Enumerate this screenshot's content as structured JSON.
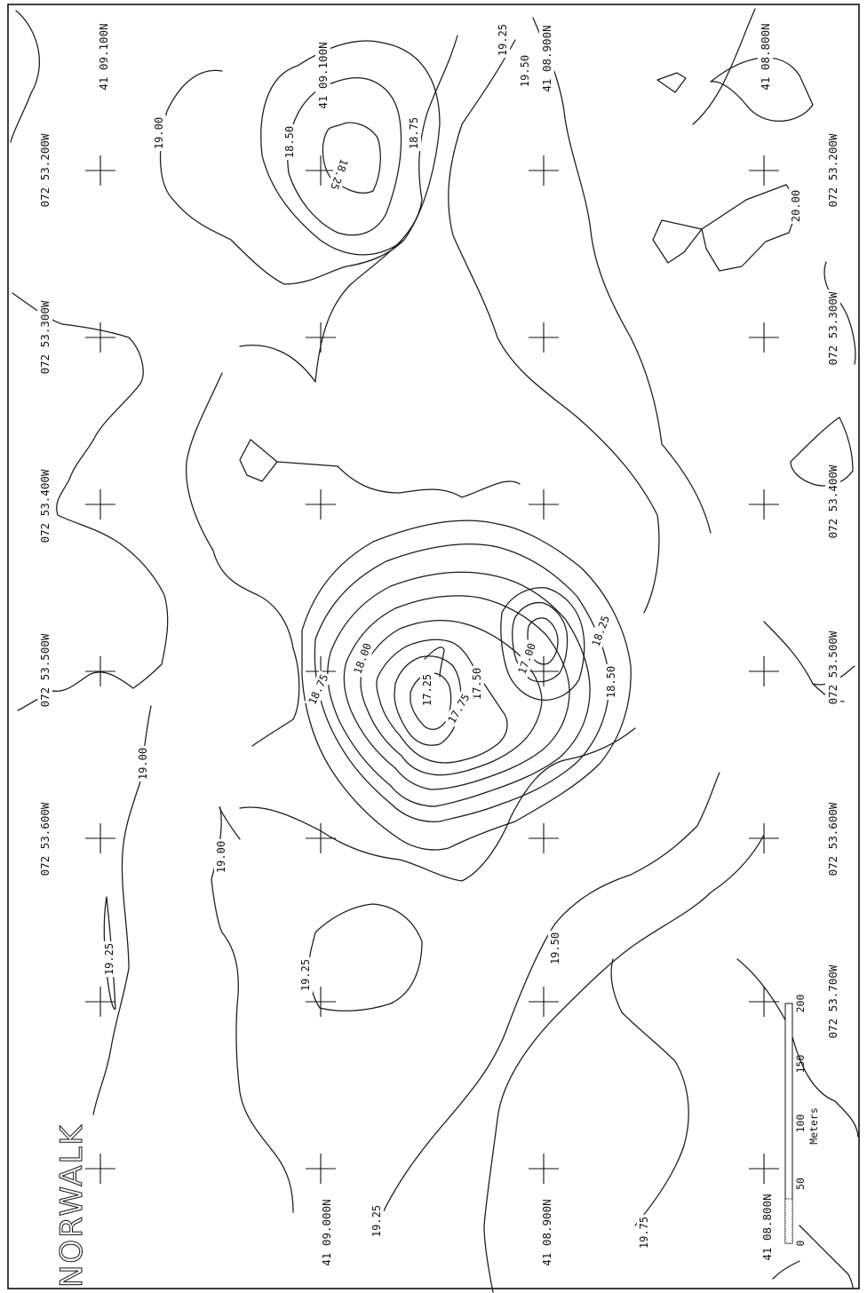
{
  "map": {
    "place_name": "NORWALK",
    "longitude_labels": [
      "072 53.200W",
      "072 53.300W",
      "072 53.400W",
      "072 53.500W",
      "072 53.600W",
      "072 53.700W"
    ],
    "latitude_labels": [
      "41 09.100N",
      "41 09.000N",
      "41 08.900N",
      "41 08.800N"
    ],
    "contour_labels": [
      "19.25",
      "19.50",
      "19.00",
      "18.50",
      "18.75",
      "18.25",
      "20.00",
      "18.00",
      "17.25",
      "17.50",
      "17.75",
      "17.00",
      "19.75"
    ],
    "scale_bar": {
      "unit": "Meters",
      "ticks": [
        "0",
        "50",
        "100",
        "150",
        "200"
      ]
    }
  }
}
